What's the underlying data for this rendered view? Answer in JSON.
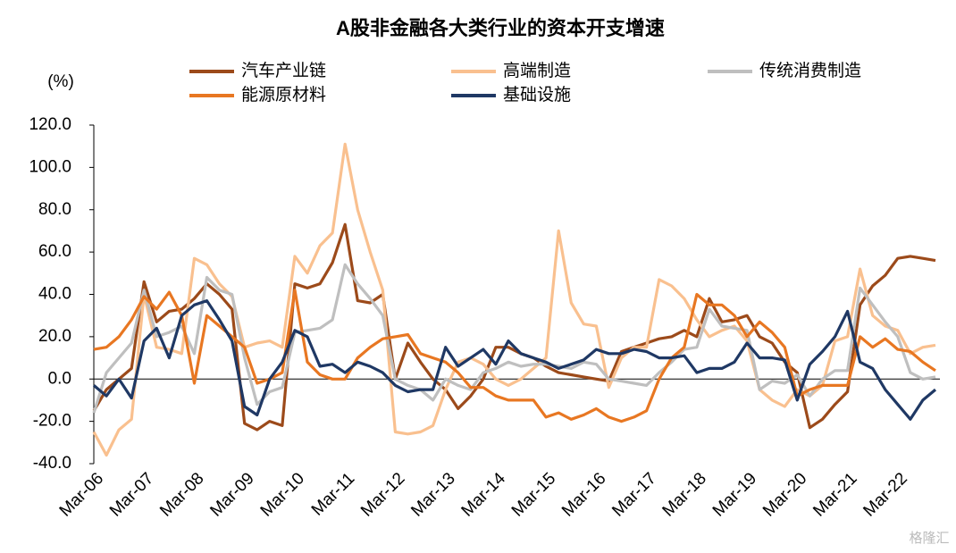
{
  "chart_data": {
    "type": "line",
    "title": "A股非金融各大类行业的资本开支增速",
    "ylabel": "(%)",
    "watermark": "格隆汇",
    "categories": [
      "Mar-06",
      null,
      null,
      null,
      "Mar-07",
      null,
      null,
      null,
      "Mar-08",
      null,
      null,
      null,
      "Mar-09",
      null,
      null,
      null,
      "Mar-10",
      null,
      null,
      null,
      "Mar-11",
      null,
      null,
      null,
      "Mar-12",
      null,
      null,
      null,
      "Mar-13",
      null,
      null,
      null,
      "Mar-14",
      null,
      null,
      null,
      "Mar-15",
      null,
      null,
      null,
      "Mar-16",
      null,
      null,
      null,
      "Mar-17",
      null,
      null,
      null,
      "Mar-18",
      null,
      null,
      null,
      "Mar-19",
      null,
      null,
      null,
      "Mar-20",
      null,
      null,
      null,
      "Mar-21",
      null,
      null,
      null,
      "Mar-22",
      null,
      null,
      null
    ],
    "ylim": [
      -40,
      120
    ],
    "yticks": [
      {
        "value": -40,
        "label": "-40.0"
      },
      {
        "value": -20,
        "label": "-20.0"
      },
      {
        "value": 0,
        "label": "0.0"
      },
      {
        "value": 20,
        "label": "20.0"
      },
      {
        "value": 40,
        "label": "40.0"
      },
      {
        "value": 60,
        "label": "60.0"
      },
      {
        "value": 80,
        "label": "80.0"
      },
      {
        "value": 100,
        "label": "100.0"
      },
      {
        "value": 120,
        "label": "120.0"
      }
    ],
    "series": [
      {
        "name": "汽车产业链",
        "color": "#9c4a1a",
        "values": [
          -15,
          -5,
          0,
          5,
          46,
          27,
          32,
          33,
          38,
          45,
          40,
          33,
          -21,
          -24,
          -20,
          -22,
          45,
          43,
          45,
          55,
          73,
          37,
          36,
          40,
          0,
          17,
          8,
          0,
          -5,
          -14,
          -8,
          0,
          15,
          15,
          12,
          10,
          6,
          3,
          2,
          1,
          0,
          -1,
          13,
          15,
          17,
          19,
          20,
          23,
          20,
          38,
          27,
          28,
          30,
          20,
          17,
          8,
          3,
          -23,
          -19,
          -12,
          -6,
          35,
          44,
          49,
          57,
          58,
          57,
          56
        ]
      },
      {
        "name": "高端制造",
        "color": "#f9c08f",
        "values": [
          -25,
          -36,
          -24,
          -19,
          40,
          15,
          14,
          12,
          57,
          54,
          45,
          39,
          15,
          17,
          18,
          15,
          58,
          50,
          63,
          69,
          111,
          80,
          60,
          42,
          -25,
          -26,
          -25,
          -22,
          -5,
          8,
          10,
          7,
          0,
          -3,
          0,
          5,
          10,
          70,
          36,
          26,
          25,
          -4,
          10,
          15,
          15,
          47,
          44,
          38,
          28,
          20,
          23,
          25,
          18,
          -5,
          -10,
          -13,
          -5,
          -8,
          -3,
          18,
          20,
          52,
          30,
          25,
          23,
          12,
          15,
          16
        ]
      },
      {
        "name": "传统消费制造",
        "color": "#bfbfbf",
        "values": [
          -16,
          3,
          10,
          17,
          42,
          20,
          22,
          25,
          12,
          48,
          42,
          40,
          10,
          -12,
          -6,
          -4,
          22,
          23,
          24,
          28,
          54,
          45,
          38,
          30,
          0,
          -3,
          -5,
          -10,
          0,
          -3,
          -5,
          3,
          5,
          8,
          6,
          7,
          7,
          6,
          5,
          8,
          7,
          0,
          -1,
          -2,
          -3,
          3,
          8,
          14,
          15,
          33,
          25,
          24,
          23,
          -5,
          -1,
          -2,
          2,
          -8,
          0,
          4,
          4,
          43,
          35,
          27,
          20,
          3,
          0,
          1
        ]
      },
      {
        "name": "能源原材料",
        "color": "#e87722",
        "values": [
          14,
          15,
          20,
          28,
          39,
          33,
          41,
          30,
          -2,
          30,
          25,
          20,
          15,
          -2,
          0,
          3,
          42,
          8,
          2,
          0,
          0,
          10,
          15,
          19,
          20,
          21,
          12,
          10,
          8,
          3,
          -4,
          -4,
          -8,
          -10,
          -10,
          -10,
          -18,
          -16,
          -19,
          -17,
          -14,
          -18,
          -20,
          -18,
          -15,
          0,
          10,
          15,
          40,
          35,
          35,
          30,
          20,
          27,
          22,
          15,
          -8,
          -5,
          -3,
          -3,
          -3,
          20,
          15,
          19,
          14,
          13,
          8,
          4
        ]
      },
      {
        "name": "基础设施",
        "color": "#1f3864",
        "values": [
          -3,
          -8,
          0,
          -9,
          18,
          24,
          10,
          30,
          35,
          37,
          28,
          18,
          -13,
          -17,
          0,
          8,
          23,
          20,
          6,
          7,
          3,
          8,
          6,
          3,
          -3,
          -6,
          -5,
          -5,
          15,
          6,
          10,
          14,
          7,
          18,
          12,
          10,
          8,
          5,
          7,
          9,
          14,
          12,
          12,
          14,
          13,
          10,
          10,
          11,
          3,
          5,
          5,
          8,
          17,
          10,
          10,
          9,
          -10,
          7,
          13,
          20,
          32,
          8,
          5,
          -5,
          -12,
          -19,
          -10,
          -5
        ]
      }
    ]
  }
}
